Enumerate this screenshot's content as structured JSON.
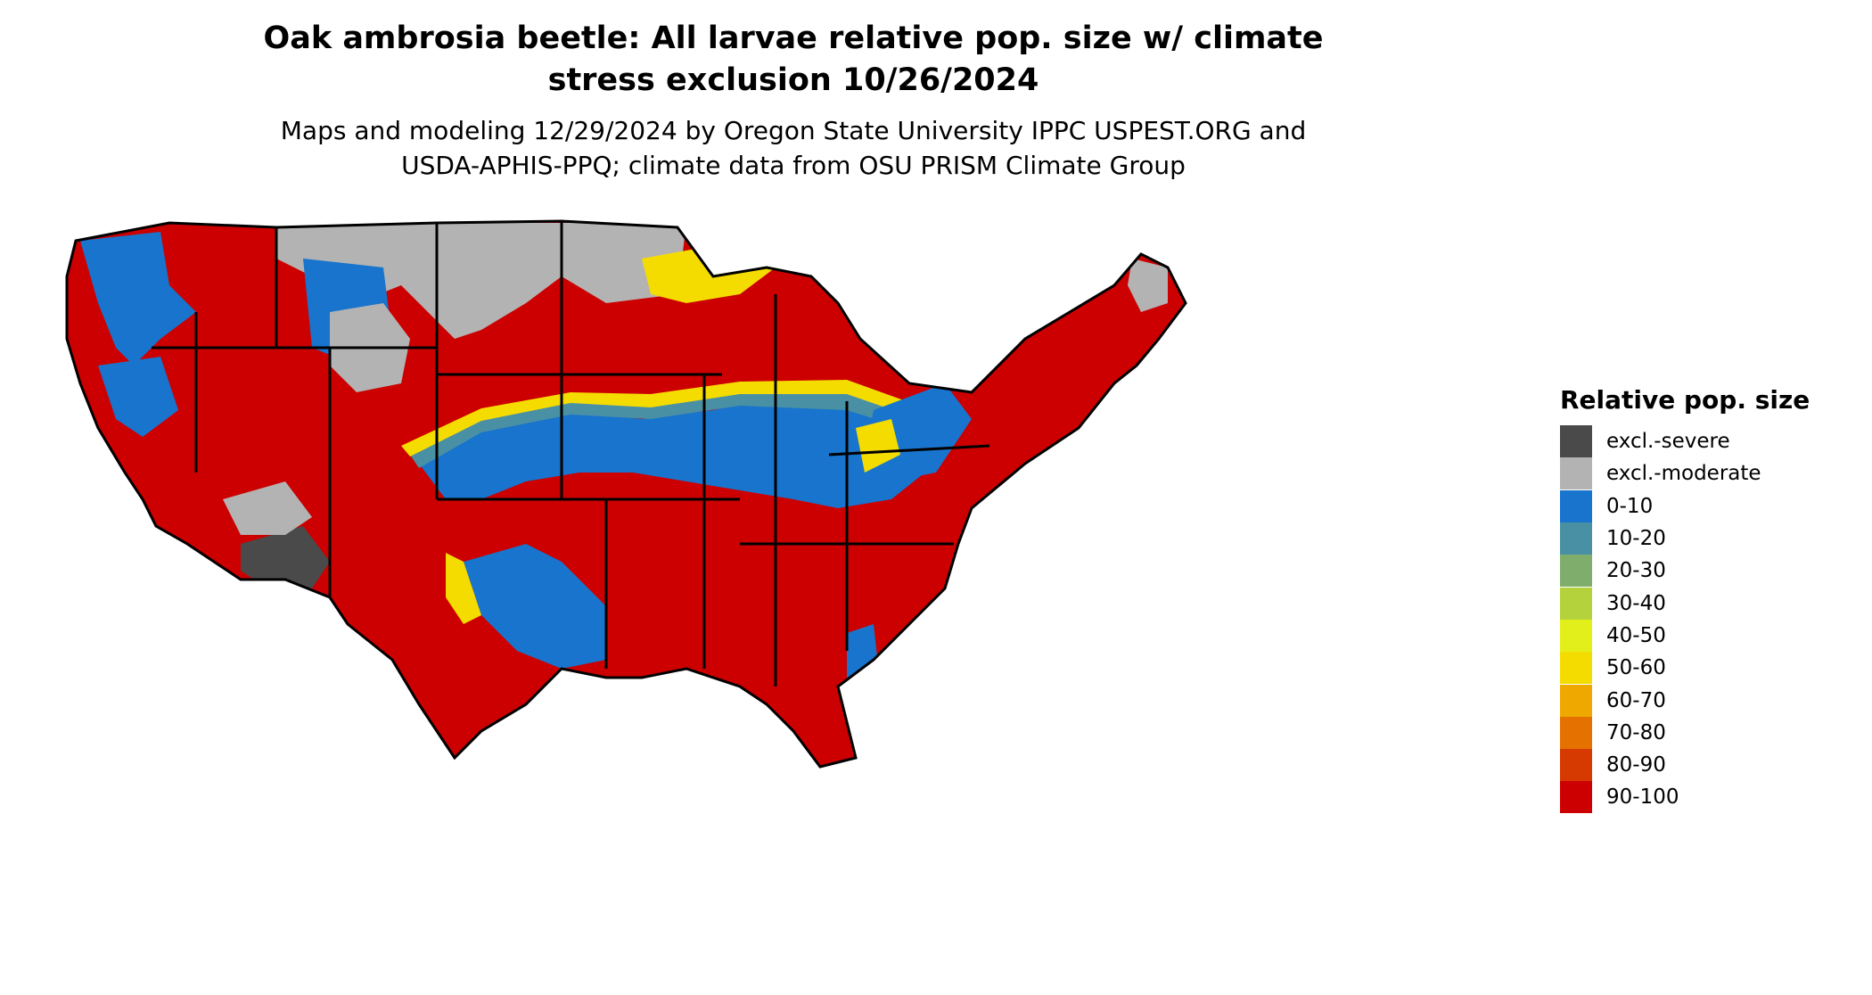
{
  "title_line1": "Oak ambrosia beetle: All larvae relative pop. size w/ climate",
  "title_line2": "stress exclusion 10/26/2024",
  "subtitle_line1": "Maps and modeling 12/29/2024 by Oregon State University IPPC USPEST.ORG and",
  "subtitle_line2": "USDA-APHIS-PPQ; climate data from OSU PRISM Climate Group",
  "legend": {
    "title": "Relative pop. size",
    "items": [
      {
        "label": "excl.-severe",
        "color": "#4a4a4a"
      },
      {
        "label": "excl.-moderate",
        "color": "#b3b3b3"
      },
      {
        "label": "0-10",
        "color": "#1874cd"
      },
      {
        "label": "10-20",
        "color": "#4a90a4"
      },
      {
        "label": "20-30",
        "color": "#7fae6c"
      },
      {
        "label": "30-40",
        "color": "#b4d23c"
      },
      {
        "label": "40-50",
        "color": "#e2ef1a"
      },
      {
        "label": "50-60",
        "color": "#f5dc00"
      },
      {
        "label": "60-70",
        "color": "#efa800"
      },
      {
        "label": "70-80",
        "color": "#e57200"
      },
      {
        "label": "80-90",
        "color": "#d63a00"
      },
      {
        "label": "90-100",
        "color": "#cc0000"
      }
    ]
  },
  "map_colors": {
    "background": "#cc0000",
    "border": "#000000"
  }
}
